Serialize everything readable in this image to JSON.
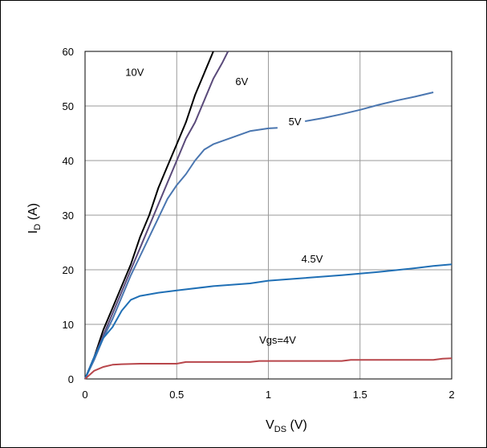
{
  "chart_data": {
    "type": "line",
    "title": "",
    "xlabel": {
      "main": "V",
      "sub": "DS",
      "unit": " (V)"
    },
    "ylabel": {
      "main": "I",
      "sub": "D",
      "unit": " (A)"
    },
    "xlim": [
      0,
      2
    ],
    "ylim": [
      0,
      60
    ],
    "xticks": [
      "0",
      "0.5",
      "1",
      "1.5",
      "2"
    ],
    "yticks": [
      "0",
      "10",
      "20",
      "30",
      "40",
      "50",
      "60"
    ],
    "grid": true,
    "series": [
      {
        "name": "10V",
        "color": "#000000",
        "x": [
          0,
          0.05,
          0.1,
          0.15,
          0.2,
          0.25,
          0.3,
          0.35,
          0.4,
          0.45,
          0.5,
          0.55,
          0.6,
          0.65,
          0.7
        ],
        "y": [
          0,
          4,
          9,
          13,
          17,
          21,
          26,
          30,
          35,
          39,
          43,
          47,
          52,
          56,
          60
        ]
      },
      {
        "name": "6V",
        "color": "#5a4a7a",
        "x": [
          0,
          0.05,
          0.1,
          0.15,
          0.2,
          0.25,
          0.3,
          0.35,
          0.4,
          0.45,
          0.5,
          0.55,
          0.6,
          0.65,
          0.7,
          0.75,
          0.78
        ],
        "y": [
          0,
          4,
          8,
          12,
          16,
          20,
          24,
          28,
          32,
          36,
          40,
          44,
          47,
          51,
          55,
          58,
          60
        ]
      },
      {
        "name": "5V",
        "color": "#4a76b0",
        "x": [
          0,
          0.05,
          0.1,
          0.15,
          0.2,
          0.25,
          0.3,
          0.35,
          0.4,
          0.45,
          0.5,
          0.55,
          0.6,
          0.65,
          0.7,
          0.8,
          0.9,
          1.0,
          1.05
        ],
        "y": [
          0,
          3.5,
          7.5,
          11,
          15,
          19,
          22.5,
          26,
          29.5,
          33,
          35.5,
          37.5,
          40,
          42,
          43,
          44.2,
          45.4,
          45.9,
          46
        ],
        "x2": [
          1.2,
          1.3,
          1.4,
          1.5,
          1.6,
          1.7,
          1.8,
          1.9
        ],
        "y2": [
          47.2,
          47.8,
          48.5,
          49.3,
          50.2,
          51,
          51.7,
          52.5
        ]
      },
      {
        "name": "4.5V",
        "color": "#1f6fb5",
        "x": [
          0,
          0.05,
          0.1,
          0.15,
          0.2,
          0.25,
          0.3,
          0.4,
          0.5,
          0.7,
          0.9,
          1.0,
          1.2,
          1.4,
          1.6,
          1.8,
          1.9,
          2.0
        ],
        "y": [
          0,
          4,
          7.5,
          9.5,
          12.5,
          14.5,
          15.2,
          15.8,
          16.2,
          17,
          17.5,
          18,
          18.5,
          19,
          19.6,
          20.3,
          20.7,
          21
        ]
      },
      {
        "name": "Vgs=4V",
        "color": "#b8464b",
        "x": [
          0,
          0.05,
          0.1,
          0.15,
          0.2,
          0.3,
          0.5,
          0.55,
          0.9,
          0.95,
          1.4,
          1.45,
          1.9,
          1.95,
          2.0
        ],
        "y": [
          0,
          1.5,
          2.2,
          2.6,
          2.7,
          2.8,
          2.8,
          3.1,
          3.1,
          3.3,
          3.3,
          3.5,
          3.5,
          3.7,
          3.8
        ]
      }
    ],
    "annotations": [
      {
        "text": "10V",
        "x": 0.22,
        "y": 55.5
      },
      {
        "text": "6V",
        "x": 0.82,
        "y": 53.8
      },
      {
        "text": "5V",
        "x": 1.11,
        "y": 46.5
      },
      {
        "text": "4.5V",
        "x": 1.18,
        "y": 21.3
      },
      {
        "text": "Vgs=4V",
        "x": 0.95,
        "y": 6.5
      }
    ]
  }
}
